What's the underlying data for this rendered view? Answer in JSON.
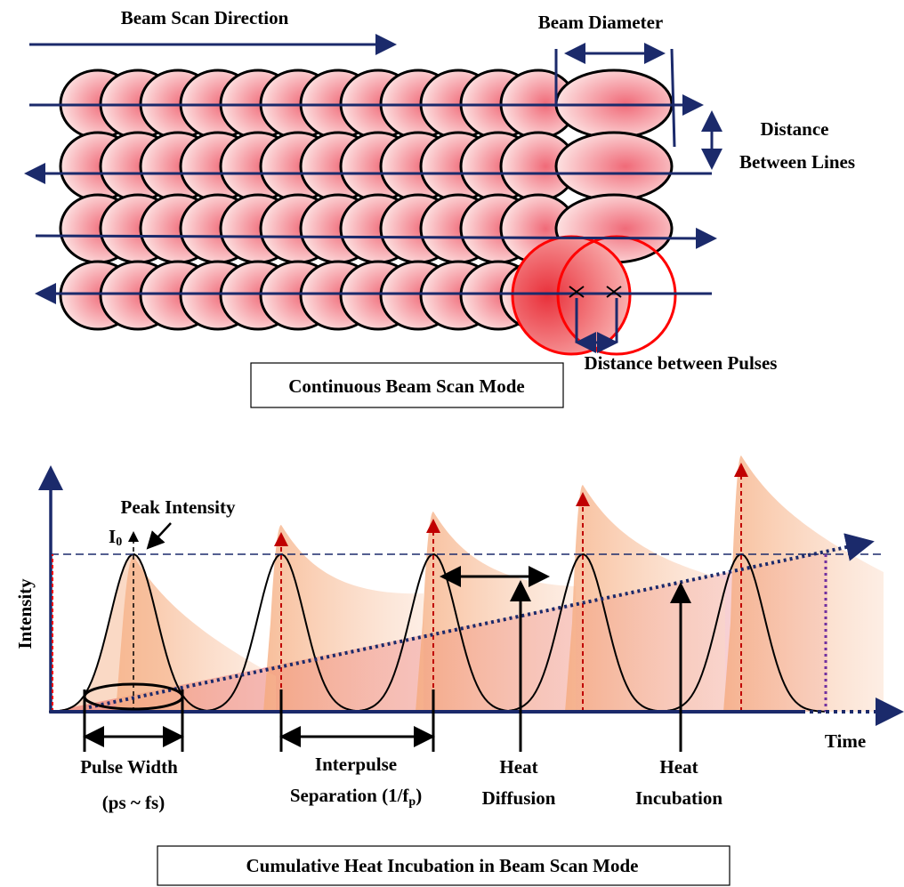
{
  "top": {
    "scan_direction": "Beam Scan Direction",
    "beam_diameter": "Beam Diameter",
    "line_distance": [
      "Distance",
      "Between Lines"
    ],
    "pulse_distance": "Distance between Pulses",
    "caption": "Continuous Beam Scan Mode"
  },
  "bottom": {
    "y_axis": "Intensity",
    "x_axis": "Time",
    "peak_intensity": "Peak Intensity",
    "peak_symbol": {
      "base": "I",
      "sub": "0"
    },
    "pulse_width": [
      "Pulse Width",
      "(ps ~ fs)"
    ],
    "interpulse": {
      "line1": "Interpulse",
      "line2": "Separation (1/f",
      "sub": "p",
      "close": ")"
    },
    "heat_diffusion": [
      "Heat",
      "Diffusion"
    ],
    "heat_incubation": [
      "Heat",
      "Incubation"
    ],
    "caption": "Cumulative Heat Incubation in Beam Scan Mode"
  }
}
